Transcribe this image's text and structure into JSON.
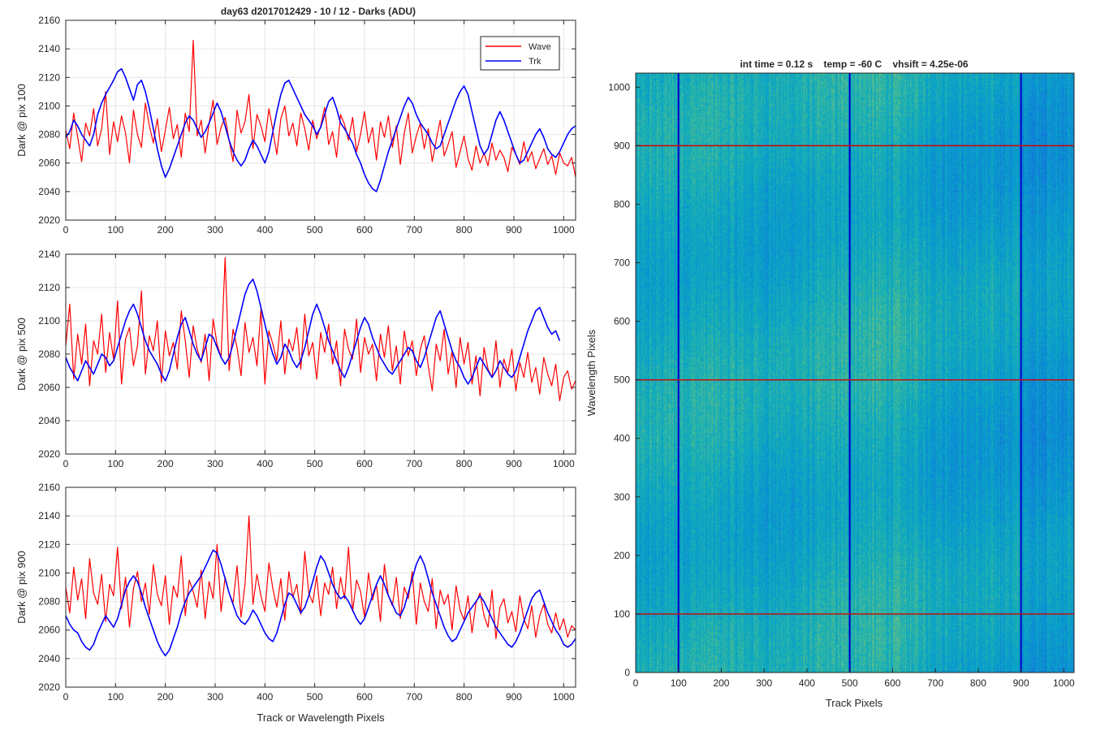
{
  "figure_title": "day63 d2017012429 - 10 / 12 - Darks (ADU)",
  "shared_xlabel": "Track or Wavelength Pixels",
  "colors": {
    "wave": "#ff0000",
    "trk": "#0000ff",
    "marker_lines": "#d40000",
    "axes": "#262626",
    "grid": "#e6e6e6"
  },
  "legend": {
    "placement": "top-right",
    "entries": [
      "Wave",
      "Trk"
    ]
  },
  "chart_data": [
    {
      "type": "line",
      "ylabel": "Dark @ pix 100",
      "xlim": [
        0,
        1024
      ],
      "ylim": [
        2020,
        2160
      ],
      "xticks": [
        0,
        100,
        200,
        300,
        400,
        500,
        600,
        700,
        800,
        900,
        1000
      ],
      "yticks": [
        2020,
        2040,
        2060,
        2080,
        2100,
        2120,
        2140,
        2160
      ],
      "grid": true,
      "sample_step": 8,
      "series": [
        {
          "name": "Wave",
          "color": "#ff0000",
          "values": [
            2083,
            2070,
            2095,
            2078,
            2061,
            2088,
            2079,
            2098,
            2072,
            2084,
            2110,
            2066,
            2089,
            2075,
            2093,
            2081,
            2060,
            2097,
            2080,
            2071,
            2102,
            2086,
            2074,
            2091,
            2068,
            2083,
            2099,
            2077,
            2087,
            2064,
            2095,
            2082,
            2146,
            2079,
            2090,
            2067,
            2088,
            2104,
            2073,
            2085,
            2092,
            2076,
            2061,
            2097,
            2081,
            2089,
            2108,
            2070,
            2094,
            2086,
            2075,
            2098,
            2083,
            2066,
            2091,
            2100,
            2079,
            2088,
            2072,
            2095,
            2084,
            2069,
            2090,
            2077,
            2086,
            2099,
            2073,
            2082,
            2064,
            2094,
            2087,
            2076,
            2092,
            2068,
            2080,
            2096,
            2074,
            2085,
            2062,
            2089,
            2078,
            2093,
            2071,
            2086,
            2059,
            2081,
            2095,
            2067,
            2079,
            2088,
            2070,
            2084,
            2061,
            2076,
            2090,
            2065,
            2073,
            2082,
            2057,
            2068,
            2079,
            2063,
            2055,
            2072,
            2060,
            2067,
            2058,
            2074,
            2062,
            2069,
            2064,
            2054,
            2071,
            2066,
            2059,
            2075,
            2061,
            2068,
            2056,
            2063,
            2070,
            2059,
            2065,
            2052,
            2067,
            2060,
            2058,
            2064,
            2050
          ]
        },
        {
          "name": "Trk",
          "color": "#0000ff",
          "values": [
            2078,
            2082,
            2090,
            2086,
            2080,
            2076,
            2072,
            2080,
            2094,
            2102,
            2108,
            2113,
            2118,
            2124,
            2126,
            2120,
            2112,
            2104,
            2115,
            2118,
            2110,
            2098,
            2084,
            2070,
            2058,
            2050,
            2056,
            2064,
            2072,
            2080,
            2088,
            2093,
            2090,
            2084,
            2078,
            2082,
            2088,
            2095,
            2102,
            2096,
            2086,
            2076,
            2068,
            2062,
            2058,
            2062,
            2070,
            2076,
            2072,
            2066,
            2060,
            2068,
            2082,
            2096,
            2108,
            2116,
            2118,
            2112,
            2106,
            2100,
            2094,
            2090,
            2086,
            2080,
            2085,
            2094,
            2103,
            2106,
            2098,
            2088,
            2084,
            2079,
            2074,
            2066,
            2060,
            2052,
            2046,
            2042,
            2040,
            2048,
            2058,
            2068,
            2076,
            2084,
            2092,
            2100,
            2106,
            2102,
            2094,
            2088,
            2084,
            2080,
            2074,
            2070,
            2072,
            2080,
            2088,
            2096,
            2104,
            2110,
            2114,
            2108,
            2096,
            2084,
            2072,
            2066,
            2070,
            2080,
            2090,
            2096,
            2090,
            2082,
            2074,
            2066,
            2060,
            2062,
            2068,
            2074,
            2080,
            2084,
            2078,
            2070,
            2066,
            2064,
            2068,
            2074,
            2080,
            2084,
            2086
          ]
        }
      ]
    },
    {
      "type": "line",
      "ylabel": "Dark @ pix 500",
      "xlim": [
        0,
        1024
      ],
      "ylim": [
        2020,
        2140
      ],
      "xticks": [
        0,
        100,
        200,
        300,
        400,
        500,
        600,
        700,
        800,
        900,
        1000
      ],
      "yticks": [
        2020,
        2040,
        2060,
        2080,
        2100,
        2120,
        2140
      ],
      "grid": true,
      "sample_step": 8,
      "series": [
        {
          "name": "Wave",
          "color": "#ff0000",
          "values": [
            2085,
            2110,
            2065,
            2092,
            2074,
            2098,
            2061,
            2088,
            2080,
            2104,
            2069,
            2093,
            2077,
            2112,
            2062,
            2089,
            2096,
            2073,
            2085,
            2118,
            2068,
            2091,
            2082,
            2100,
            2063,
            2094,
            2079,
            2087,
            2071,
            2106,
            2088,
            2066,
            2097,
            2083,
            2075,
            2092,
            2064,
            2101,
            2086,
            2078,
            2138,
            2070,
            2095,
            2084,
            2067,
            2099,
            2081,
            2090,
            2073,
            2107,
            2062,
            2094,
            2086,
            2076,
            2100,
            2068,
            2089,
            2082,
            2096,
            2071,
            2104,
            2079,
            2087,
            2065,
            2093,
            2081,
            2098,
            2074,
            2088,
            2061,
            2095,
            2083,
            2077,
            2101,
            2069,
            2090,
            2080,
            2086,
            2064,
            2092,
            2078,
            2097,
            2070,
            2085,
            2062,
            2094,
            2079,
            2088,
            2067,
            2083,
            2091,
            2073,
            2058,
            2086,
            2076,
            2095,
            2068,
            2082,
            2060,
            2090,
            2074,
            2087,
            2062,
            2079,
            2055,
            2084,
            2071,
            2066,
            2088,
            2060,
            2077,
            2069,
            2083,
            2058,
            2075,
            2066,
            2081,
            2063,
            2072,
            2056,
            2078,
            2068,
            2061,
            2074,
            2052,
            2066,
            2070,
            2059,
            2064
          ]
        },
        {
          "name": "Trk",
          "color": "#0000ff",
          "values": [
            2078,
            2072,
            2068,
            2064,
            2070,
            2076,
            2072,
            2068,
            2074,
            2080,
            2078,
            2073,
            2076,
            2084,
            2092,
            2100,
            2106,
            2110,
            2104,
            2096,
            2088,
            2082,
            2078,
            2074,
            2068,
            2064,
            2070,
            2080,
            2090,
            2098,
            2102,
            2094,
            2086,
            2080,
            2076,
            2084,
            2092,
            2090,
            2084,
            2078,
            2074,
            2078,
            2086,
            2096,
            2106,
            2116,
            2122,
            2125,
            2118,
            2108,
            2098,
            2088,
            2080,
            2074,
            2078,
            2086,
            2082,
            2076,
            2072,
            2076,
            2084,
            2094,
            2104,
            2110,
            2104,
            2096,
            2088,
            2082,
            2076,
            2070,
            2066,
            2072,
            2080,
            2088,
            2096,
            2102,
            2098,
            2090,
            2084,
            2078,
            2074,
            2070,
            2068,
            2072,
            2076,
            2080,
            2084,
            2082,
            2076,
            2072,
            2078,
            2086,
            2094,
            2102,
            2106,
            2098,
            2090,
            2082,
            2076,
            2072,
            2066,
            2062,
            2066,
            2072,
            2078,
            2074,
            2070,
            2066,
            2070,
            2076,
            2072,
            2068,
            2066,
            2070,
            2078,
            2086,
            2094,
            2100,
            2106,
            2108,
            2102,
            2096,
            2092,
            2094,
            2088
          ]
        }
      ]
    },
    {
      "type": "line",
      "ylabel": "Dark @ pix 900",
      "xlabel": "Track or Wavelength Pixels",
      "xlim": [
        0,
        1024
      ],
      "ylim": [
        2020,
        2160
      ],
      "xticks": [
        0,
        100,
        200,
        300,
        400,
        500,
        600,
        700,
        800,
        900,
        1000
      ],
      "yticks": [
        2020,
        2040,
        2060,
        2080,
        2100,
        2120,
        2140,
        2160
      ],
      "grid": true,
      "sample_step": 8,
      "series": [
        {
          "name": "Wave",
          "color": "#ff0000",
          "values": [
            2090,
            2072,
            2104,
            2081,
            2096,
            2068,
            2110,
            2086,
            2078,
            2099,
            2066,
            2092,
            2084,
            2118,
            2075,
            2097,
            2062,
            2089,
            2101,
            2080,
            2093,
            2071,
            2106,
            2085,
            2077,
            2098,
            2064,
            2091,
            2083,
            2112,
            2070,
            2095,
            2087,
            2076,
            2102,
            2068,
            2094,
            2082,
            2120,
            2073,
            2097,
            2086,
            2079,
            2105,
            2069,
            2092,
            2140,
            2078,
            2099,
            2084,
            2073,
            2107,
            2089,
            2076,
            2096,
            2067,
            2101,
            2083,
            2092,
            2071,
            2115,
            2086,
            2079,
            2098,
            2070,
            2093,
            2085,
            2104,
            2075,
            2097,
            2082,
            2118,
            2073,
            2095,
            2087,
            2069,
            2100,
            2081,
            2092,
            2066,
            2106,
            2084,
            2077,
            2097,
            2068,
            2090,
            2082,
            2101,
            2064,
            2093,
            2080,
            2073,
            2096,
            2061,
            2088,
            2078,
            2085,
            2060,
            2091,
            2074,
            2067,
            2084,
            2058,
            2079,
            2086,
            2070,
            2062,
            2088,
            2054,
            2076,
            2082,
            2065,
            2073,
            2059,
            2084,
            2068,
            2061,
            2077,
            2055,
            2070,
            2078,
            2064,
            2058,
            2072,
            2060,
            2068,
            2055,
            2063,
            2060
          ]
        },
        {
          "name": "Trk",
          "color": "#0000ff",
          "values": [
            2070,
            2064,
            2060,
            2058,
            2052,
            2048,
            2046,
            2050,
            2058,
            2064,
            2070,
            2066,
            2062,
            2068,
            2078,
            2088,
            2094,
            2098,
            2094,
            2086,
            2076,
            2068,
            2060,
            2052,
            2046,
            2042,
            2046,
            2054,
            2062,
            2072,
            2080,
            2086,
            2090,
            2094,
            2098,
            2104,
            2110,
            2116,
            2114,
            2106,
            2096,
            2086,
            2078,
            2070,
            2066,
            2064,
            2068,
            2074,
            2070,
            2064,
            2058,
            2054,
            2052,
            2058,
            2068,
            2078,
            2086,
            2084,
            2078,
            2072,
            2076,
            2084,
            2094,
            2104,
            2112,
            2108,
            2100,
            2092,
            2086,
            2082,
            2084,
            2080,
            2074,
            2068,
            2064,
            2068,
            2076,
            2084,
            2092,
            2098,
            2092,
            2084,
            2078,
            2072,
            2070,
            2076,
            2086,
            2096,
            2106,
            2112,
            2106,
            2096,
            2086,
            2078,
            2070,
            2062,
            2056,
            2052,
            2054,
            2060,
            2066,
            2072,
            2076,
            2080,
            2084,
            2080,
            2074,
            2068,
            2062,
            2058,
            2054,
            2050,
            2048,
            2052,
            2058,
            2066,
            2074,
            2082,
            2086,
            2088,
            2080,
            2072,
            2066,
            2060,
            2056,
            2050,
            2048,
            2050,
            2054
          ]
        }
      ]
    },
    {
      "type": "heatmap",
      "title": "int time = 0.12 s    temp = -60 C    vhsift = 4.25e-06",
      "xlabel": "Track Pixels",
      "ylabel": "Wavelength Pixels",
      "xlim": [
        0,
        1024
      ],
      "ylim": [
        0,
        1024
      ],
      "xticks": [
        0,
        100,
        200,
        300,
        400,
        500,
        600,
        700,
        800,
        900,
        1000
      ],
      "yticks": [
        0,
        100,
        200,
        300,
        400,
        500,
        600,
        700,
        800,
        900,
        1000
      ],
      "colormap": "parula",
      "grid": false,
      "vertical_markers": [
        100,
        500,
        900
      ],
      "vertical_marker_color": "#0000c8",
      "horizontal_markers": [
        100,
        500,
        900
      ],
      "horizontal_marker_color": "#d40000"
    }
  ]
}
